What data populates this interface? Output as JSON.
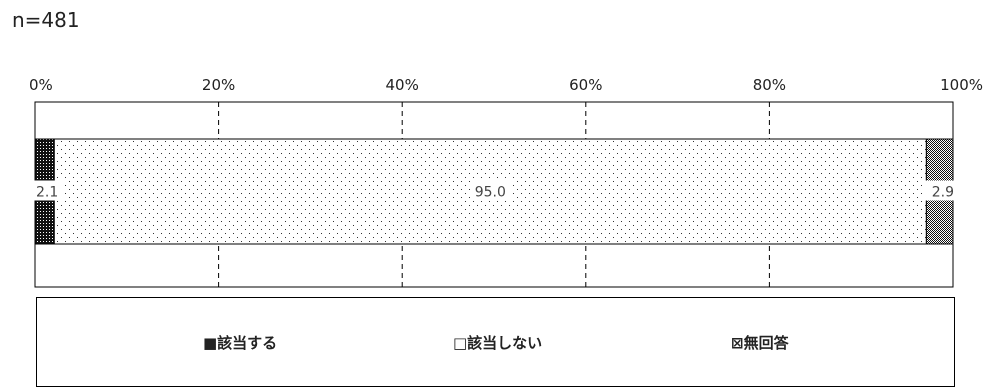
{
  "sample_label": "n=481",
  "chart_data": {
    "type": "bar",
    "orientation": "horizontal",
    "stacked": true,
    "xlim": [
      0,
      100
    ],
    "x_ticks": [
      "0%",
      "20%",
      "40%",
      "60%",
      "80%",
      "100%"
    ],
    "grid": "vertical dashed",
    "legend_position": "bottom",
    "series": [
      {
        "name": "■該当する",
        "values": [
          2.1
        ],
        "label": "2.1",
        "color": "#111111",
        "pattern": "dense-dots"
      },
      {
        "name": "□該当しない",
        "values": [
          95.0
        ],
        "label": "95.0",
        "color": "#ffffff",
        "pattern": "sparse-dots"
      },
      {
        "name": "⊠無回答",
        "values": [
          2.9
        ],
        "label": "2.9",
        "color": "#888888",
        "pattern": "checker"
      }
    ]
  },
  "legend": {
    "items": [
      "■該当する",
      "□該当しない",
      "⊠無回答"
    ]
  }
}
